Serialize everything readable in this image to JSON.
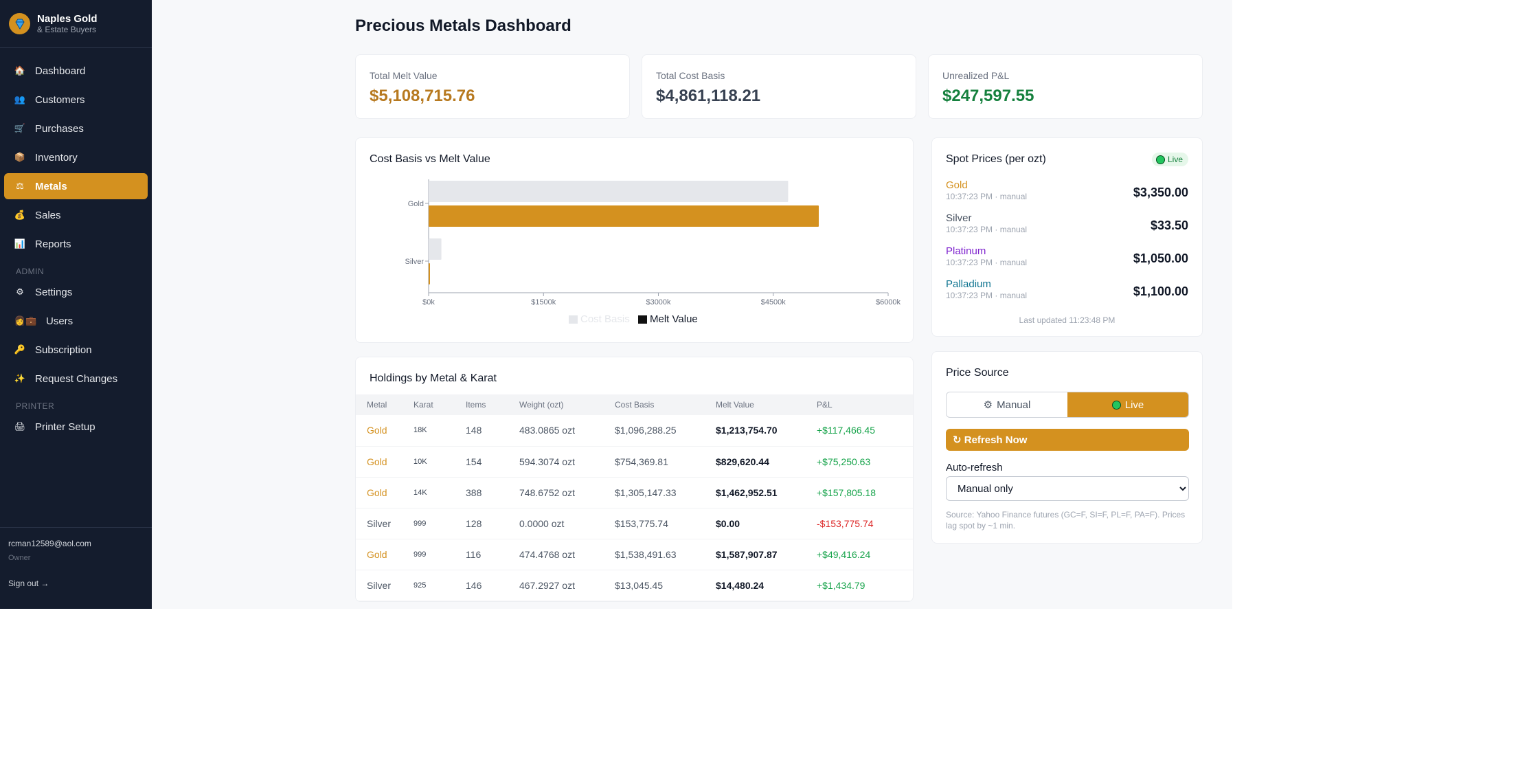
{
  "brand": {
    "name": "Naples Gold",
    "subtitle": "& Estate Buyers"
  },
  "nav": {
    "items": [
      {
        "label": "Dashboard",
        "icon": "house-icon"
      },
      {
        "label": "Customers",
        "icon": "people-icon"
      },
      {
        "label": "Purchases",
        "icon": "cart-icon"
      },
      {
        "label": "Inventory",
        "icon": "box-icon"
      },
      {
        "label": "Metals",
        "icon": "scales-icon",
        "active": true
      },
      {
        "label": "Sales",
        "icon": "money-bag-icon"
      },
      {
        "label": "Reports",
        "icon": "bar-chart-icon"
      }
    ],
    "admin_section": "ADMIN",
    "admin_items": [
      {
        "label": "Settings",
        "icon": "gear-icon"
      },
      {
        "label": "Users",
        "icon": "users-icon"
      },
      {
        "label": "Subscription",
        "icon": "key-icon"
      },
      {
        "label": "Request Changes",
        "icon": "sparkles-icon"
      }
    ],
    "printer_section": "PRINTER",
    "printer_items": [
      {
        "label": "Printer Setup",
        "icon": "printer-icon"
      }
    ]
  },
  "user": {
    "email": "rcman12589@aol.com",
    "role": "Owner",
    "signout": "Sign out →"
  },
  "page_title": "Precious Metals Dashboard",
  "stats": {
    "melt": {
      "label": "Total Melt Value",
      "value": "$5,108,715.76",
      "color": "#b7791f"
    },
    "cost": {
      "label": "Total Cost Basis",
      "value": "$4,861,118.21",
      "color": "#374151"
    },
    "pnl": {
      "label": "Unrealized P&L",
      "value": "$247,597.55",
      "color": "#15803d"
    }
  },
  "chart_title": "Cost Basis vs Melt Value",
  "chart_data": {
    "type": "bar",
    "orientation": "horizontal",
    "categories": [
      "Gold",
      "Silver"
    ],
    "series": [
      {
        "name": "Cost Basis",
        "values": [
          4694296.02,
          166821.19
        ],
        "color": "#e5e7eb"
      },
      {
        "name": "Melt Value",
        "values": [
          5094235.52,
          14480.24
        ],
        "color": "#d4911f"
      }
    ],
    "xlim": [
      0,
      6000000
    ],
    "xticks": [
      "$0k",
      "$1500k",
      "$3000k",
      "$4500k",
      "$6000k"
    ],
    "legend": [
      "Cost Basis",
      "Melt Value"
    ],
    "legend_position": "bottom"
  },
  "spot": {
    "title": "Spot Prices (per ozt)",
    "badge": "Live",
    "rows": [
      {
        "metal": "Gold",
        "meta": "10:37:23 PM · manual",
        "price": "$3,350.00",
        "color": "#d4911f"
      },
      {
        "metal": "Silver",
        "meta": "10:37:23 PM · manual",
        "price": "$33.50",
        "color": "#4b5563"
      },
      {
        "metal": "Platinum",
        "meta": "10:37:23 PM · manual",
        "price": "$1,050.00",
        "color": "#7e22ce"
      },
      {
        "metal": "Palladium",
        "meta": "10:37:23 PM · manual",
        "price": "$1,100.00",
        "color": "#0e7490"
      }
    ],
    "updated": "Last updated 11:23:48 PM"
  },
  "price_source": {
    "title": "Price Source",
    "manual_label": "Manual",
    "live_label": "Live",
    "refresh_label": "↻ Refresh Now",
    "auto_label": "Auto-refresh",
    "auto_value": "Manual only",
    "note": "Source: Yahoo Finance futures (GC=F, SI=F, PL=F, PA=F). Prices lag spot by ~1 min."
  },
  "holdings": {
    "title": "Holdings by Metal & Karat",
    "columns": [
      "Metal",
      "Karat",
      "Items",
      "Weight (ozt)",
      "Cost Basis",
      "Melt Value",
      "P&L"
    ],
    "rows": [
      {
        "metal": "Gold",
        "karat": "18K",
        "items": "148",
        "weight": "483.0865 ozt",
        "cost": "$1,096,288.25",
        "melt": "$1,213,754.70",
        "pnl": "+$117,466.45",
        "neg": false
      },
      {
        "metal": "Gold",
        "karat": "10K",
        "items": "154",
        "weight": "594.3074 ozt",
        "cost": "$754,369.81",
        "melt": "$829,620.44",
        "pnl": "+$75,250.63",
        "neg": false
      },
      {
        "metal": "Gold",
        "karat": "14K",
        "items": "388",
        "weight": "748.6752 ozt",
        "cost": "$1,305,147.33",
        "melt": "$1,462,952.51",
        "pnl": "+$157,805.18",
        "neg": false
      },
      {
        "metal": "Silver",
        "karat": "999",
        "items": "128",
        "weight": "0.0000 ozt",
        "cost": "$153,775.74",
        "melt": "$0.00",
        "pnl": "-$153,775.74",
        "neg": true
      },
      {
        "metal": "Gold",
        "karat": "999",
        "items": "116",
        "weight": "474.4768 ozt",
        "cost": "$1,538,491.63",
        "melt": "$1,587,907.87",
        "pnl": "+$49,416.24",
        "neg": false
      },
      {
        "metal": "Silver",
        "karat": "925",
        "items": "146",
        "weight": "467.2927 ozt",
        "cost": "$13,045.45",
        "melt": "$14,480.24",
        "pnl": "+$1,434.79",
        "neg": false
      }
    ]
  }
}
